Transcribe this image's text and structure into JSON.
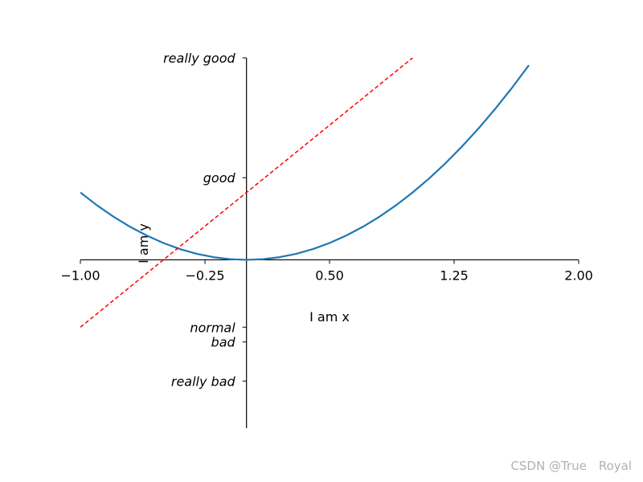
{
  "chart_data": {
    "type": "line",
    "xlabel": "I am x",
    "ylabel": "I am y",
    "xlim": [
      -1,
      2
    ],
    "ylim": [
      -2.5,
      3
    ],
    "x_ticks": [
      -1,
      -0.25,
      0.5,
      1.25,
      2
    ],
    "x_tick_labels": [
      "−1.00",
      "−0.25",
      "0.50",
      "1.25",
      "2.00"
    ],
    "y_ticks": [
      -1.8,
      -1.22,
      -1,
      1.22,
      3
    ],
    "y_tick_labels": [
      "really bad",
      "bad",
      "normal",
      "good",
      "really good"
    ],
    "spines": "centered at origin, top and right hidden",
    "grid": false,
    "series": [
      {
        "style": "solid",
        "color": "#1f77b4",
        "x": [
          -1,
          -0.9,
          -0.8,
          -0.7,
          -0.6,
          -0.5,
          -0.4,
          -0.3,
          -0.2,
          -0.1,
          0,
          0.1,
          0.2,
          0.3,
          0.4,
          0.5,
          0.6,
          0.7,
          0.8,
          0.9,
          1.0,
          1.1,
          1.2,
          1.3,
          1.4,
          1.5,
          1.6,
          1.7
        ],
        "y": [
          1.0,
          0.81,
          0.64,
          0.49,
          0.36,
          0.25,
          0.16,
          0.09,
          0.04,
          0.01,
          0,
          0.01,
          0.04,
          0.09,
          0.16,
          0.25,
          0.36,
          0.49,
          0.64,
          0.81,
          1.0,
          1.21,
          1.44,
          1.69,
          1.96,
          2.25,
          2.56,
          2.89
        ]
      },
      {
        "style": "dashed",
        "color": "#ff0000",
        "x": [
          -1,
          1
        ],
        "y": [
          -1,
          3
        ]
      }
    ]
  },
  "watermark": "CSDN @True　Royal"
}
